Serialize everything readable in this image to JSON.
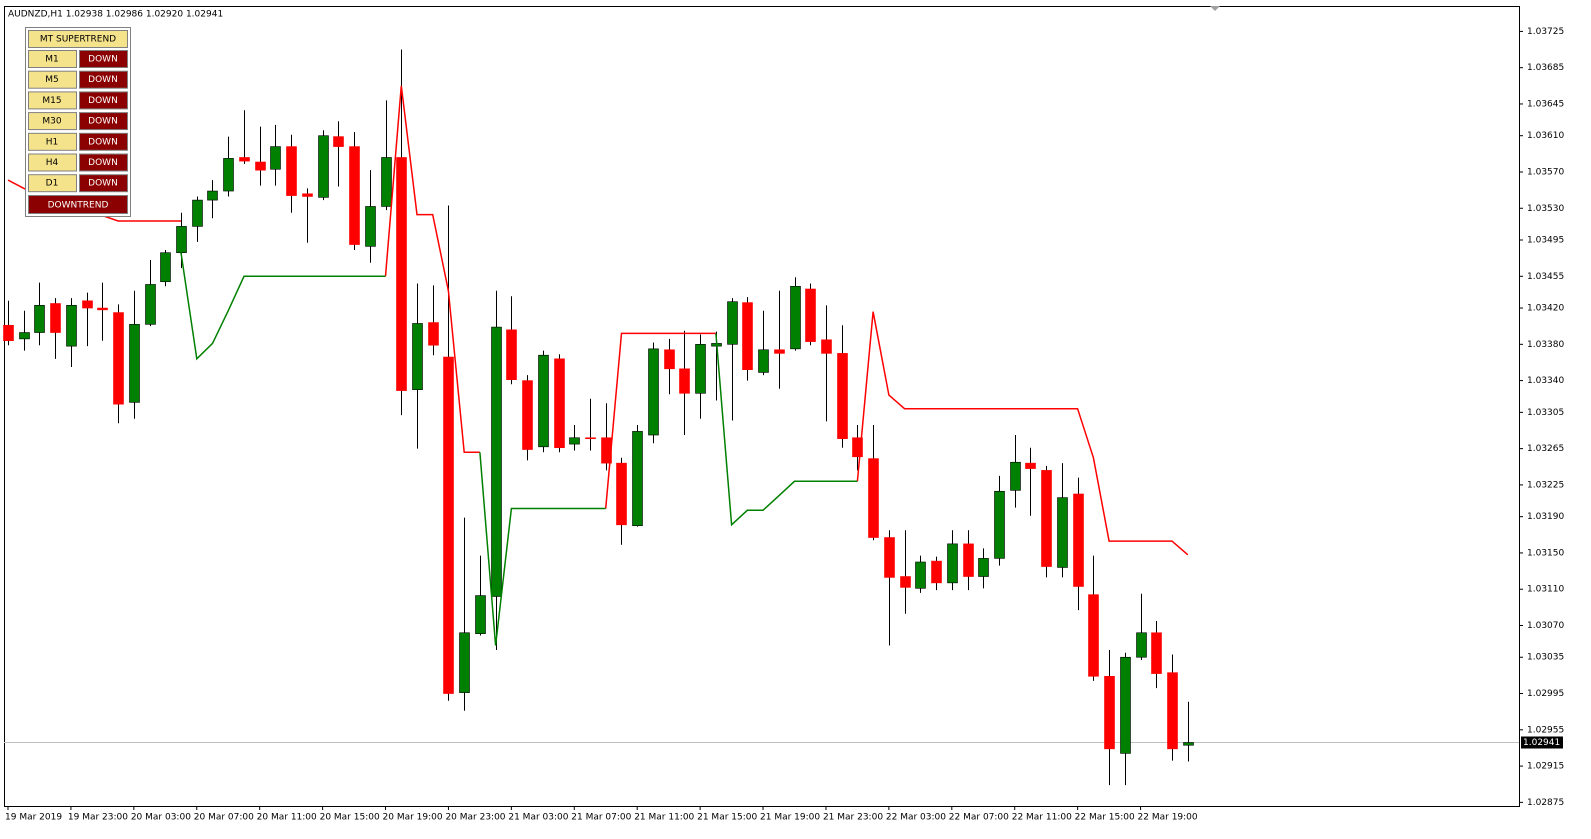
{
  "chart_data": {
    "type": "candlestick",
    "title": "AUDNZD,H1  1.02938 1.02986 1.02920 1.02941",
    "categories": [
      "19 Mar 2019",
      null,
      null,
      null,
      "19 Mar 23:00",
      null,
      null,
      null,
      "20 Mar 03:00",
      null,
      null,
      null,
      "20 Mar 07:00",
      null,
      null,
      null,
      "20 Mar 11:00",
      null,
      null,
      null,
      "20 Mar 15:00",
      null,
      null,
      null,
      "20 Mar 19:00",
      null,
      null,
      null,
      "20 Mar 23:00",
      null,
      null,
      null,
      "21 Mar 03:00",
      null,
      null,
      null,
      "21 Mar 07:00",
      null,
      null,
      null,
      "21 Mar 11:00",
      null,
      null,
      null,
      "21 Mar 15:00",
      null,
      null,
      null,
      "21 Mar 19:00",
      null,
      null,
      null,
      "21 Mar 23:00",
      null,
      null,
      null,
      "22 Mar 03:00",
      null,
      null,
      null,
      "22 Mar 07:00",
      null,
      null,
      null,
      "22 Mar 11:00",
      null,
      null,
      null,
      "22 Mar 15:00",
      null,
      null,
      null,
      "22 Mar 19:00",
      null,
      null,
      null
    ],
    "open": [
      1.03401,
      1.03386,
      1.03393,
      1.03425,
      1.03378,
      1.03428,
      1.0342,
      1.03415,
      1.03316,
      1.03402,
      1.03449,
      1.03481,
      1.0351,
      1.03539,
      1.03549,
      1.03586,
      1.03581,
      1.03573,
      1.03598,
      1.03546,
      1.03542,
      1.03609,
      1.03598,
      1.03488,
      1.03532,
      1.03586,
      1.0333,
      1.03404,
      1.03366,
      1.02996,
      1.03061,
      1.03102,
      1.03396,
      1.0334,
      1.03267,
      1.03364,
      1.0327,
      1.03277,
      1.03277,
      1.03249,
      1.0318,
      1.0328,
      1.03374,
      1.03353,
      1.03326,
      1.03378,
      1.0338,
      1.03426,
      1.03349,
      1.03374,
      1.03375,
      1.03441,
      1.03385,
      1.0337,
      1.03277,
      1.03254,
      1.03167,
      1.03124,
      1.03111,
      1.03141,
      1.03117,
      1.0316,
      1.03124,
      1.03144,
      1.03219,
      1.03249,
      1.03241,
      1.03134,
      1.03215,
      1.03104,
      1.03014,
      1.02929,
      1.03035,
      1.03062,
      1.03018,
      1.02938
    ],
    "high": [
      1.03428,
      1.03417,
      1.03448,
      1.03431,
      1.03431,
      1.03437,
      1.03448,
      1.03424,
      1.03439,
      1.03473,
      1.03484,
      1.03525,
      1.03543,
      1.03561,
      1.03609,
      1.03638,
      1.0362,
      1.03622,
      1.03611,
      1.03552,
      1.03616,
      1.03626,
      1.03614,
      1.03572,
      1.03649,
      1.03705,
      1.03447,
      1.03445,
      1.03533,
      1.03189,
      1.03147,
      1.03439,
      1.03433,
      1.03346,
      1.03373,
      1.03369,
      1.03291,
      1.0332,
      1.03315,
      1.03255,
      1.03291,
      1.03382,
      1.03386,
      1.03395,
      1.03391,
      1.03394,
      1.03431,
      1.03432,
      1.03417,
      1.03439,
      1.03454,
      1.03447,
      1.03423,
      1.03401,
      1.03291,
      1.03291,
      1.03175,
      1.03175,
      1.03147,
      1.03146,
      1.03175,
      1.03175,
      1.03155,
      1.03235,
      1.0328,
      1.03266,
      1.03246,
      1.03249,
      1.03233,
      1.03147,
      1.03043,
      1.0304,
      1.03105,
      1.03075,
      1.03038,
      1.02986
    ],
    "low": [
      1.03379,
      1.03373,
      1.03379,
      1.03364,
      1.03355,
      1.03378,
      1.03384,
      1.03293,
      1.03298,
      1.034,
      1.03444,
      1.03464,
      1.03493,
      1.03519,
      1.03543,
      1.03579,
      1.03555,
      1.03555,
      1.03525,
      1.03492,
      1.03539,
      1.03554,
      1.03484,
      1.0347,
      1.03528,
      1.03302,
      1.03265,
      1.03368,
      1.02987,
      1.02976,
      1.03059,
      1.03043,
      1.03336,
      1.03252,
      1.03261,
      1.03261,
      1.03263,
      1.03263,
      1.03241,
      1.03159,
      1.03179,
      1.03271,
      1.03325,
      1.0328,
      1.03298,
      1.03318,
      1.03296,
      1.0334,
      1.03346,
      1.03331,
      1.03373,
      1.03379,
      1.03295,
      1.03266,
      1.03241,
      1.03164,
      1.03048,
      1.03083,
      1.03106,
      1.03109,
      1.03109,
      1.03109,
      1.03111,
      1.03136,
      1.032,
      1.03191,
      1.03123,
      1.03123,
      1.03087,
      1.03009,
      1.02894,
      1.02894,
      1.03032,
      1.03001,
      1.02921,
      1.0292
    ],
    "close": [
      1.03384,
      1.03393,
      1.03423,
      1.03393,
      1.03423,
      1.0342,
      1.03418,
      1.03314,
      1.03402,
      1.03446,
      1.03481,
      1.0351,
      1.03539,
      1.03549,
      1.03585,
      1.03582,
      1.03572,
      1.03598,
      1.03544,
      1.03543,
      1.0361,
      1.03598,
      1.0349,
      1.03532,
      1.03586,
      1.03329,
      1.03403,
      1.03379,
      1.02995,
      1.03062,
      1.03103,
      1.03399,
      1.03341,
      1.03264,
      1.03368,
      1.03266,
      1.03277,
      1.03276,
      1.03249,
      1.03181,
      1.03284,
      1.03375,
      1.03353,
      1.03326,
      1.0338,
      1.03381,
      1.03427,
      1.03352,
      1.03374,
      1.0337,
      1.03444,
      1.03383,
      1.0337,
      1.03276,
      1.03256,
      1.03167,
      1.03123,
      1.03112,
      1.0314,
      1.03117,
      1.0316,
      1.03124,
      1.03144,
      1.03218,
      1.0325,
      1.03243,
      1.03135,
      1.03211,
      1.03113,
      1.03014,
      1.02934,
      1.03035,
      1.03062,
      1.03017,
      1.02934,
      1.02941
    ],
    "up_color": "#008000",
    "down_color": "#ff0000",
    "wick_color": "#000000",
    "trend_down": {
      "color": "#ff0000",
      "values": [
        1.03561,
        1.03552,
        1.03544,
        1.03539,
        1.03533,
        1.03528,
        1.03522,
        1.03516,
        1.03516,
        1.03516,
        1.03516,
        1.03516,
        null,
        null,
        null,
        null,
        null,
        null,
        null,
        null,
        null,
        null,
        null,
        null,
        1.03455,
        1.03665,
        1.03523,
        1.03523,
        1.03439,
        1.03261,
        1.03261,
        null,
        null,
        null,
        null,
        null,
        null,
        null,
        1.03199,
        1.03392,
        1.03392,
        1.03392,
        1.03392,
        1.03392,
        1.03392,
        1.03392,
        null,
        null,
        null,
        null,
        null,
        null,
        null,
        null,
        1.03229,
        1.03416,
        1.03324,
        1.03309,
        1.03309,
        1.03309,
        1.03309,
        1.03309,
        1.03309,
        1.03309,
        1.03309,
        1.03309,
        1.03309,
        1.03309,
        1.03309,
        1.03255,
        1.03163,
        1.03163,
        1.03163,
        1.03163,
        1.03163,
        1.03148
      ]
    },
    "trend_up": {
      "color": "#008000",
      "values": [
        null,
        null,
        null,
        null,
        null,
        null,
        null,
        null,
        null,
        null,
        null,
        1.03481,
        1.03364,
        1.03381,
        1.03417,
        1.03455,
        1.03455,
        1.03455,
        1.03455,
        1.03455,
        1.03455,
        1.03455,
        1.03455,
        1.03455,
        1.03455,
        null,
        null,
        null,
        null,
        null,
        1.03261,
        1.03048,
        1.03199,
        1.03199,
        1.03199,
        1.03199,
        1.03199,
        1.03199,
        1.03199,
        null,
        null,
        null,
        null,
        null,
        null,
        1.03392,
        1.03181,
        1.03197,
        1.03197,
        1.03213,
        1.03229,
        1.03229,
        1.03229,
        1.03229,
        1.03229,
        null,
        null,
        null,
        null,
        null,
        null,
        null,
        null,
        null,
        null,
        null,
        null,
        null,
        null,
        null,
        null,
        null,
        null,
        null,
        null,
        null
      ]
    },
    "ylim": [
      1.02871,
      1.03753
    ],
    "yticks": [
      1.02875,
      1.02915,
      1.02955,
      1.02995,
      1.03035,
      {
        "value": 1.0307,
        "label": "1.03070"
      },
      {
        "value": 1.0311,
        "label": "1.03110"
      },
      {
        "value": 1.0315,
        "label": "1.03150"
      },
      {
        "value": 1.0319,
        "label": "1.03190"
      },
      1.03225,
      1.03265,
      1.03305,
      {
        "value": 1.0334,
        "label": "1.03340"
      },
      {
        "value": 1.0338,
        "label": "1.03380"
      },
      {
        "value": 1.0342,
        "label": "1.03420"
      },
      1.03455,
      1.03495,
      {
        "value": 1.0353,
        "label": "1.03530"
      },
      {
        "value": 1.0357,
        "label": "1.03570"
      },
      {
        "value": 1.0361,
        "label": "1.03610"
      },
      1.03645,
      1.03685,
      1.03725
    ],
    "grid": false
  },
  "panel": {
    "title": "MT SUPERTREND",
    "rows": [
      [
        "M1",
        "DOWN"
      ],
      [
        "M5",
        "DOWN"
      ],
      [
        "M15",
        "DOWN"
      ],
      [
        "M30",
        "DOWN"
      ],
      [
        "H1",
        "DOWN"
      ],
      [
        "H4",
        "DOWN"
      ],
      [
        "D1",
        "DOWN"
      ]
    ],
    "summary": "DOWNTREND"
  }
}
